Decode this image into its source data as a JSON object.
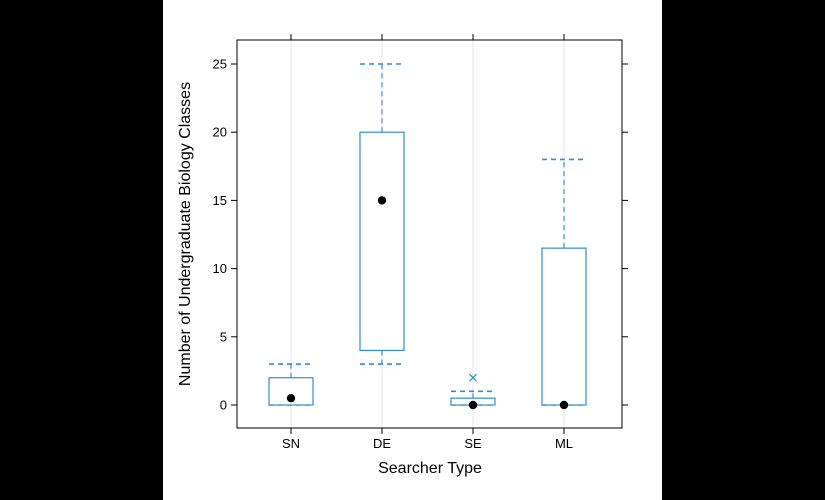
{
  "chart_data": {
    "type": "box",
    "xlabel": "Searcher Type",
    "ylabel": "Number of Undergraduate Biology Classes",
    "categories": [
      "SN",
      "DE",
      "SE",
      "ML"
    ],
    "ylim": [
      -1.7,
      26.8
    ],
    "yticks": [
      0,
      5,
      10,
      15,
      20,
      25
    ],
    "grid": "vertical-at-categories",
    "boxes": [
      {
        "category": "SN",
        "whisker_low": 0,
        "q1": 0,
        "median": 0.5,
        "q3": 2,
        "whisker_high": 3,
        "outliers": []
      },
      {
        "category": "DE",
        "whisker_low": 3,
        "q1": 4,
        "median": 15,
        "q3": 20,
        "whisker_high": 25,
        "outliers": []
      },
      {
        "category": "SE",
        "whisker_low": 0,
        "q1": 0,
        "median": 0,
        "q3": 0.5,
        "whisker_high": 1,
        "outliers": [
          2
        ]
      },
      {
        "category": "ML",
        "whisker_low": 0,
        "q1": 0,
        "median": 0,
        "q3": 11.5,
        "whisker_high": 18,
        "outliers": []
      }
    ],
    "colors": {
      "box": "#2b8fd6",
      "median": "#000000",
      "background": "#ffffff",
      "side_bars": "#000000"
    }
  }
}
